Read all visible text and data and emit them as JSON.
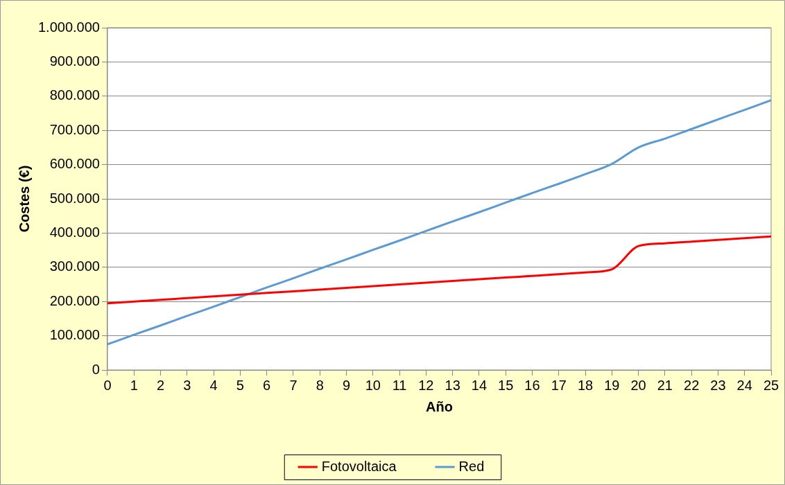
{
  "chart_data": {
    "type": "line",
    "xlabel": "Año",
    "ylabel": "Costes (€)",
    "x": [
      0,
      1,
      2,
      3,
      4,
      5,
      6,
      7,
      8,
      9,
      10,
      11,
      12,
      13,
      14,
      15,
      16,
      17,
      18,
      19,
      20,
      21,
      22,
      23,
      24,
      25
    ],
    "series": [
      {
        "name": "Fotovoltaica",
        "color": "#ff0000",
        "values": [
          195000,
          200000,
          205000,
          210000,
          215000,
          220000,
          225000,
          230000,
          235000,
          240000,
          245000,
          250000,
          255000,
          260000,
          265000,
          270000,
          275000,
          280000,
          285000,
          294000,
          362000,
          370000,
          375000,
          380000,
          385000,
          390000
        ]
      },
      {
        "name": "Red",
        "color": "#5b9bd5",
        "values": [
          75000,
          103000,
          130000,
          158000,
          185000,
          213000,
          241000,
          268000,
          296000,
          323000,
          351000,
          378000,
          406000,
          434000,
          461000,
          489000,
          517000,
          544000,
          572000,
          602000,
          650000,
          676000,
          704000,
          732000,
          760000,
          788000
        ]
      }
    ],
    "xlim": [
      0,
      25
    ],
    "xticks": [
      0,
      1,
      2,
      3,
      4,
      5,
      6,
      7,
      8,
      9,
      10,
      11,
      12,
      13,
      14,
      15,
      16,
      17,
      18,
      19,
      20,
      21,
      22,
      23,
      24,
      25
    ],
    "ylim": [
      0,
      1000000
    ],
    "yticks": [
      0,
      {
        "value": 100000,
        "label": "100.000"
      },
      {
        "value": 200000,
        "label": "200.000"
      },
      {
        "value": 300000,
        "label": "300.000"
      },
      {
        "value": 400000,
        "label": "400.000"
      },
      {
        "value": 500000,
        "label": "500.000"
      },
      {
        "value": 600000,
        "label": "600.000"
      },
      {
        "value": 700000,
        "label": "700.000"
      },
      {
        "value": 800000,
        "label": "800.000"
      },
      {
        "value": 900000,
        "label": "900.000"
      },
      {
        "value": 1000000,
        "label": "1.000.000"
      }
    ],
    "grid": "y",
    "legend": "bottom",
    "marker": "none",
    "line_style": "solid"
  }
}
